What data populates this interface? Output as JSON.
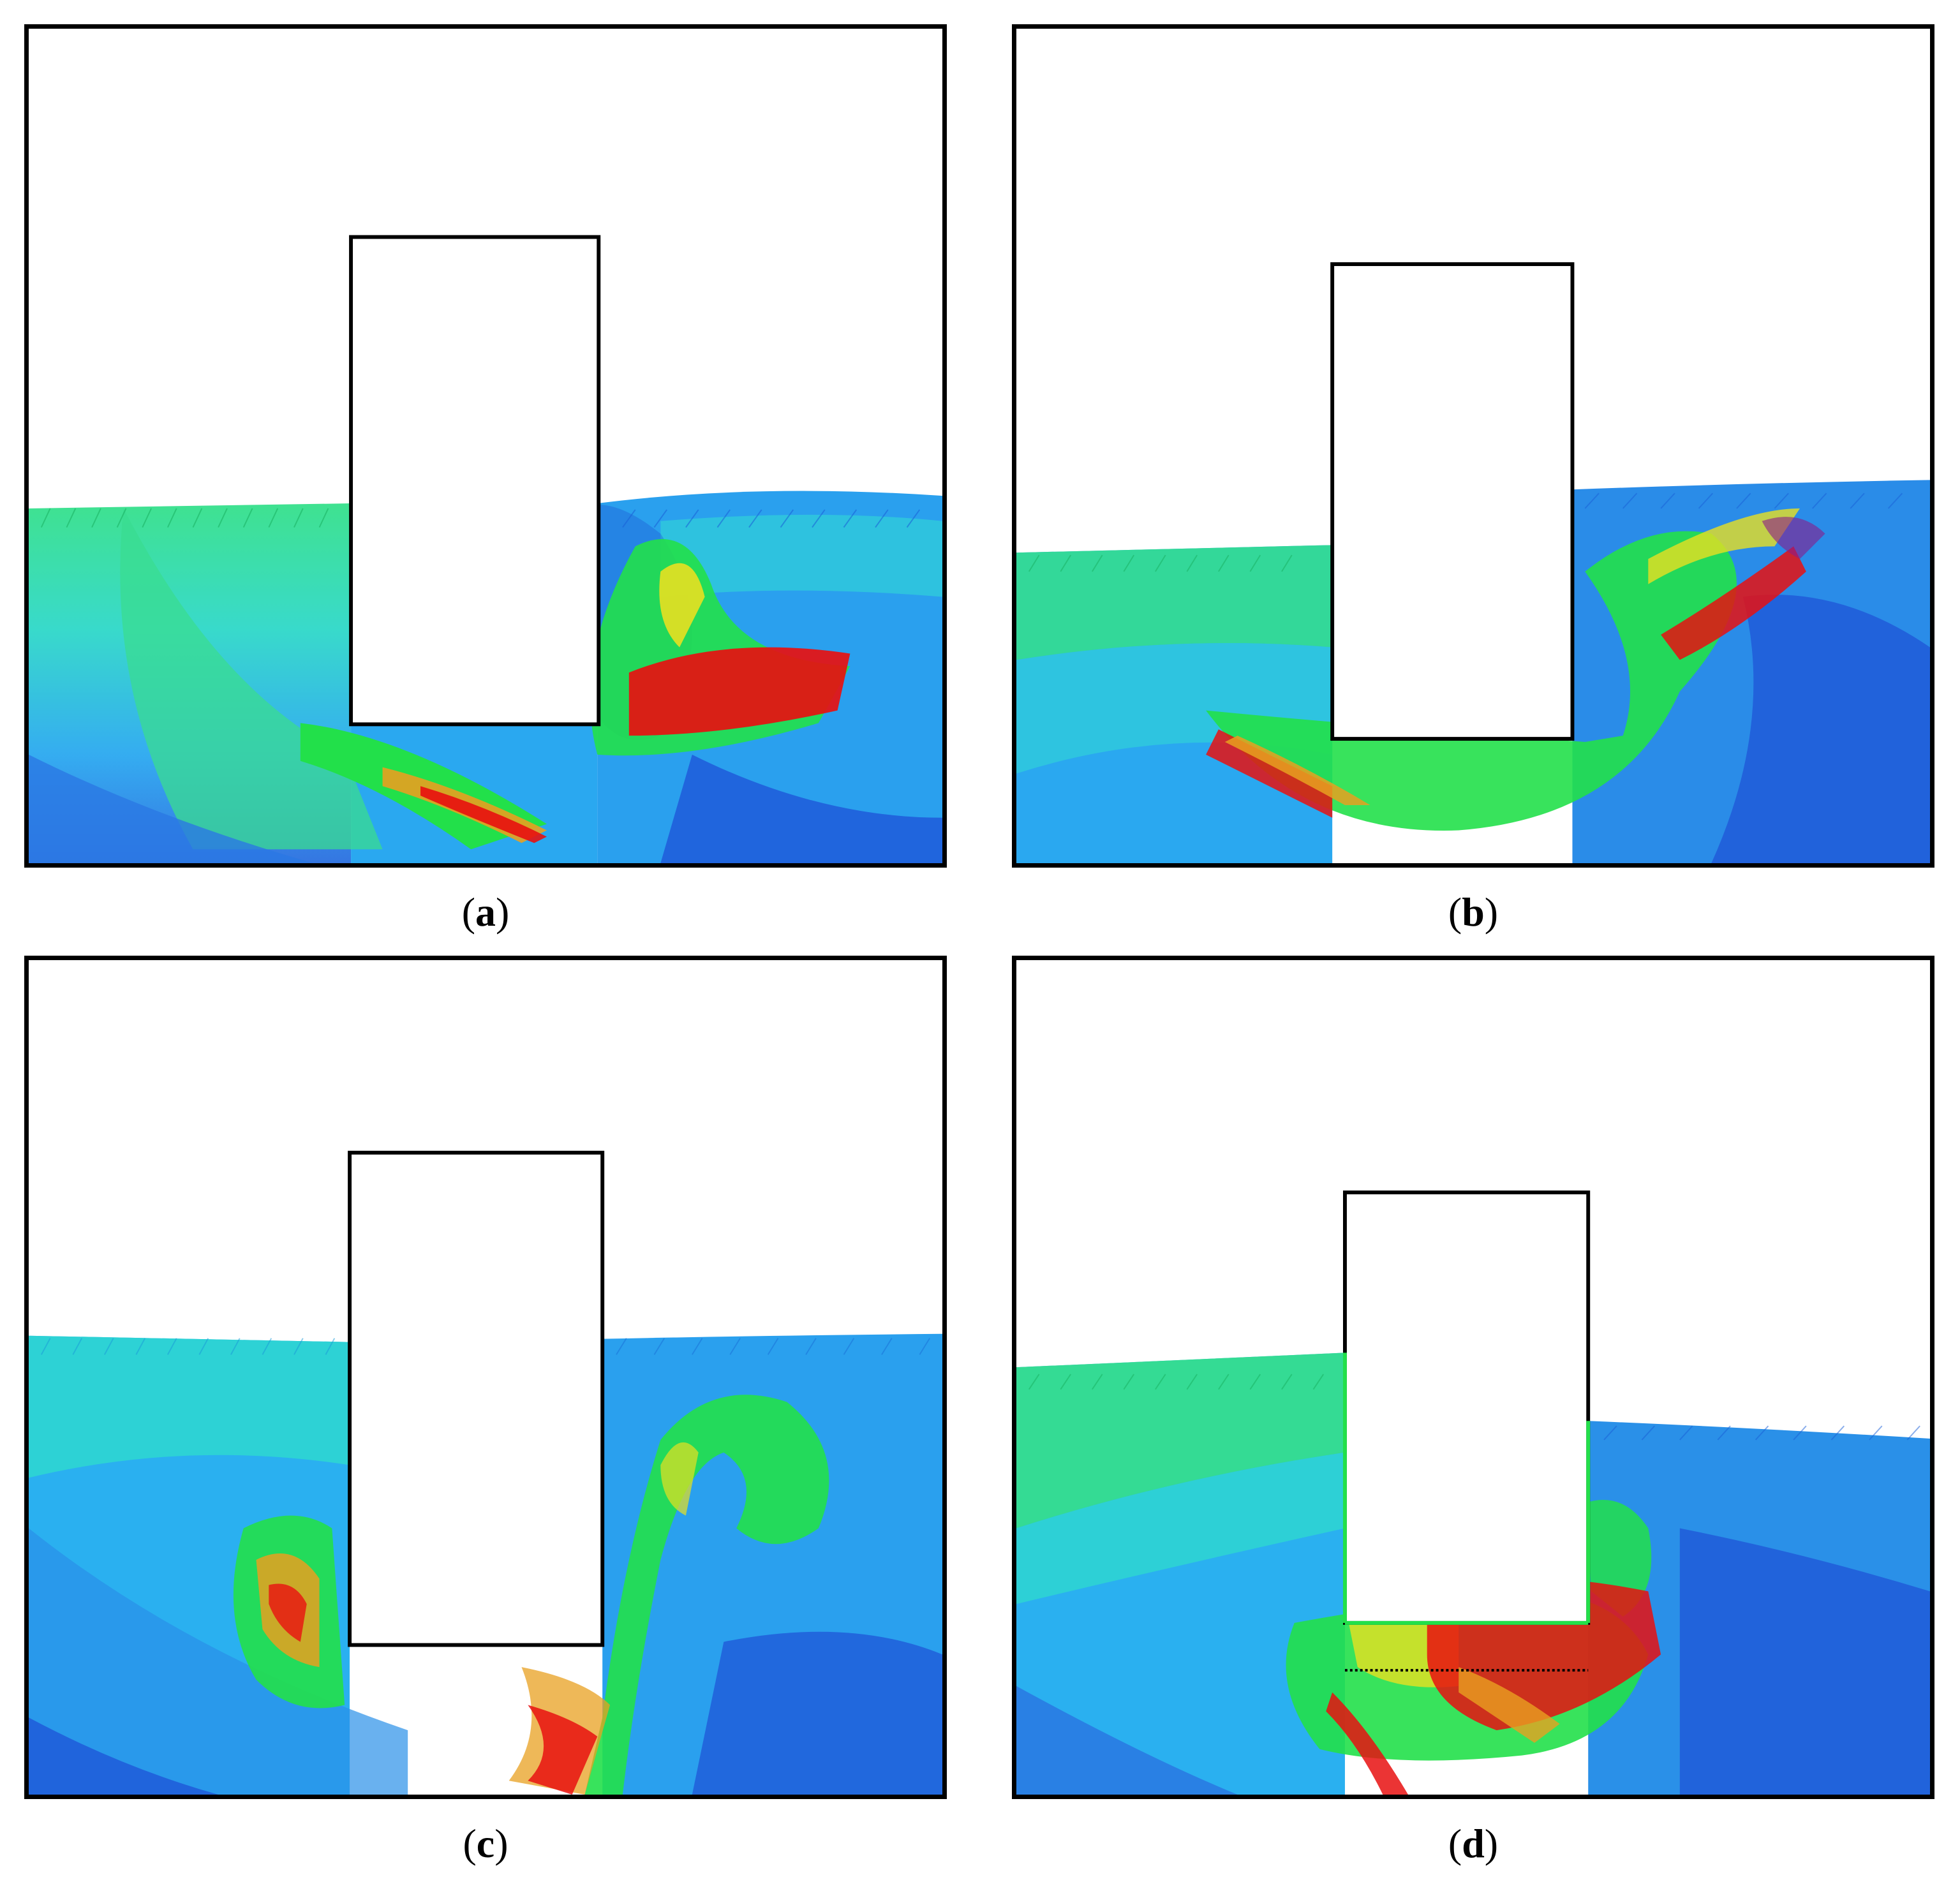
{
  "figure": {
    "panels": [
      {
        "id": "a",
        "caption_open": "(",
        "caption_letter": "a",
        "caption_close": ")"
      },
      {
        "id": "b",
        "caption_open": "(",
        "caption_letter": "b",
        "caption_close": ")"
      },
      {
        "id": "c",
        "caption_open": "(",
        "caption_letter": "c",
        "caption_close": ")"
      },
      {
        "id": "d",
        "caption_open": "(",
        "caption_letter": "d",
        "caption_close": ")"
      }
    ]
  },
  "colors": {
    "low_speed": "#1a4fd6",
    "mid_low_speed": "#2aa8f0",
    "mid_speed": "#2ee0e0",
    "mid_high_speed": "#22e04a",
    "high_speed": "#e8e020",
    "max_speed": "#e81010",
    "structure_outline": "#000000"
  }
}
